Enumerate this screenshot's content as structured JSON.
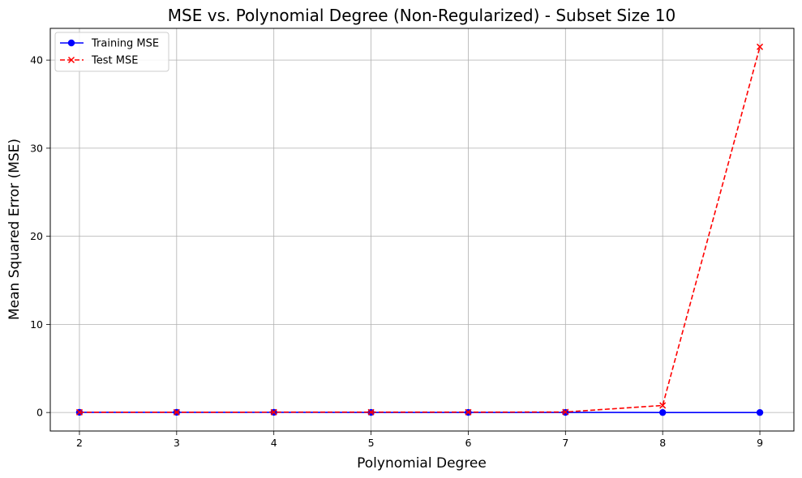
{
  "chart_data": {
    "type": "line",
    "title": "MSE vs. Polynomial Degree (Non-Regularized) - Subset Size 10",
    "xlabel": "Polynomial Degree",
    "ylabel": "Mean Squared Error (MSE)",
    "x": [
      2,
      3,
      4,
      5,
      6,
      7,
      8,
      9
    ],
    "xlim": [
      1.7,
      9.35
    ],
    "ylim": [
      -2.1,
      43.6
    ],
    "xticks": [
      "2",
      "3",
      "4",
      "5",
      "6",
      "7",
      "8",
      "9"
    ],
    "yticks": [
      0,
      10,
      20,
      30,
      40
    ],
    "ytick_labels": [
      "0",
      "10",
      "20",
      "30",
      "40"
    ],
    "grid": true,
    "legend_position": "top-left",
    "series": [
      {
        "name": "Training MSE",
        "values": [
          0.02,
          0.02,
          0.02,
          0.01,
          0.01,
          0.01,
          0.0,
          0.0
        ],
        "color": "#0000ff",
        "line_style": "solid",
        "marker": "circle"
      },
      {
        "name": "Test MSE",
        "values": [
          0.03,
          0.03,
          0.04,
          0.04,
          0.04,
          0.06,
          0.8,
          41.5
        ],
        "color": "#ff0000",
        "line_style": "dashed",
        "marker": "x"
      }
    ]
  }
}
